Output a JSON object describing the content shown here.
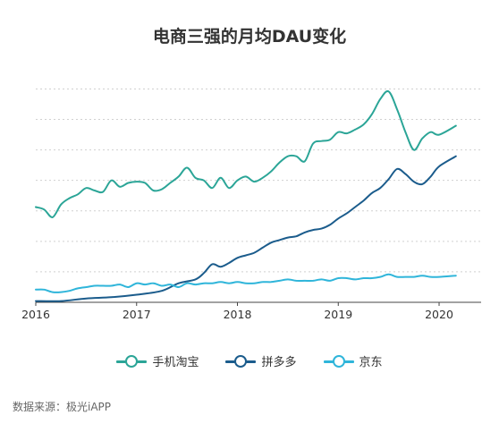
{
  "chart_data": {
    "type": "line",
    "title": "电商三强的月均DAU变化",
    "x_tick_labels": [
      "2016",
      "2017",
      "2018",
      "2019",
      "2020"
    ],
    "xlim": [
      "2016-01",
      "2020-06"
    ],
    "ylim": [
      0,
      100
    ],
    "y_gridlines": [
      12,
      24,
      36,
      48,
      60,
      72,
      84
    ],
    "y_axis_labels_shown": false,
    "legend_position": "bottom-center",
    "series": [
      {
        "name": "手机淘宝",
        "color": "#2BA597",
        "points": [
          [
            "2016-01",
            37.5
          ],
          [
            "2016-02",
            36.5
          ],
          [
            "2016-03",
            33.5
          ],
          [
            "2016-04",
            38.5
          ],
          [
            "2016-05",
            41
          ],
          [
            "2016-06",
            42.5
          ],
          [
            "2016-07",
            45
          ],
          [
            "2016-08",
            44
          ],
          [
            "2016-09",
            43.5
          ],
          [
            "2016-10",
            48
          ],
          [
            "2016-11",
            45.5
          ],
          [
            "2016-12",
            47
          ],
          [
            "2017-01",
            47.5
          ],
          [
            "2017-02",
            47
          ],
          [
            "2017-03",
            44
          ],
          [
            "2017-04",
            44.5
          ],
          [
            "2017-05",
            47
          ],
          [
            "2017-06",
            49.5
          ],
          [
            "2017-07",
            53
          ],
          [
            "2017-08",
            49
          ],
          [
            "2017-09",
            48
          ],
          [
            "2017-10",
            45
          ],
          [
            "2017-11",
            49
          ],
          [
            "2017-12",
            45
          ],
          [
            "2018-01",
            48
          ],
          [
            "2018-02",
            49.5
          ],
          [
            "2018-03",
            47.5
          ],
          [
            "2018-04",
            49
          ],
          [
            "2018-05",
            51.5
          ],
          [
            "2018-06",
            55
          ],
          [
            "2018-07",
            57.5
          ],
          [
            "2018-08",
            57.5
          ],
          [
            "2018-09",
            55.5
          ],
          [
            "2018-10",
            62.5
          ],
          [
            "2018-11",
            63.5
          ],
          [
            "2018-12",
            64
          ],
          [
            "2019-01",
            67
          ],
          [
            "2019-02",
            66.5
          ],
          [
            "2019-03",
            68
          ],
          [
            "2019-04",
            70
          ],
          [
            "2019-05",
            74
          ],
          [
            "2019-06",
            80
          ],
          [
            "2019-07",
            83
          ],
          [
            "2019-08",
            76
          ],
          [
            "2019-09",
            67
          ],
          [
            "2019-10",
            60
          ],
          [
            "2019-11",
            64.5
          ],
          [
            "2019-12",
            67
          ],
          [
            "2020-01",
            66
          ],
          [
            "2020-03",
            69.5
          ]
        ]
      },
      {
        "name": "拼多多",
        "color": "#1B5C8C",
        "points": [
          [
            "2016-01",
            0.5
          ],
          [
            "2016-04",
            0.5
          ],
          [
            "2016-07",
            1.5
          ],
          [
            "2016-10",
            2
          ],
          [
            "2017-01",
            3
          ],
          [
            "2017-04",
            4.5
          ],
          [
            "2017-06",
            7.5
          ],
          [
            "2017-08",
            9
          ],
          [
            "2017-09",
            11.5
          ],
          [
            "2017-10",
            15
          ],
          [
            "2017-11",
            14
          ],
          [
            "2017-12",
            15.5
          ],
          [
            "2018-01",
            17.5
          ],
          [
            "2018-02",
            18.5
          ],
          [
            "2018-03",
            19.5
          ],
          [
            "2018-04",
            21.5
          ],
          [
            "2018-05",
            23.5
          ],
          [
            "2018-06",
            24.5
          ],
          [
            "2018-07",
            25.5
          ],
          [
            "2018-08",
            26
          ],
          [
            "2018-09",
            27.5
          ],
          [
            "2018-10",
            28.5
          ],
          [
            "2018-11",
            29
          ],
          [
            "2018-12",
            30.5
          ],
          [
            "2019-01",
            33
          ],
          [
            "2019-02",
            35
          ],
          [
            "2019-03",
            37.5
          ],
          [
            "2019-04",
            40
          ],
          [
            "2019-05",
            43
          ],
          [
            "2019-06",
            45
          ],
          [
            "2019-07",
            48.5
          ],
          [
            "2019-08",
            52.5
          ],
          [
            "2019-09",
            50.5
          ],
          [
            "2019-10",
            47.5
          ],
          [
            "2019-11",
            46.5
          ],
          [
            "2019-12",
            49.5
          ],
          [
            "2020-01",
            53.5
          ],
          [
            "2020-03",
            57.5
          ]
        ]
      },
      {
        "name": "京东",
        "color": "#2FB5DA",
        "points": [
          [
            "2016-01",
            5
          ],
          [
            "2016-02",
            5
          ],
          [
            "2016-03",
            4
          ],
          [
            "2016-04",
            4
          ],
          [
            "2016-05",
            4.5
          ],
          [
            "2016-06",
            5.5
          ],
          [
            "2016-07",
            6
          ],
          [
            "2016-08",
            6.5
          ],
          [
            "2016-09",
            6.5
          ],
          [
            "2016-10",
            6.5
          ],
          [
            "2016-11",
            7
          ],
          [
            "2016-12",
            6
          ],
          [
            "2017-01",
            7.5
          ],
          [
            "2017-02",
            7
          ],
          [
            "2017-03",
            7.5
          ],
          [
            "2017-04",
            6.5
          ],
          [
            "2017-05",
            7
          ],
          [
            "2017-06",
            6
          ],
          [
            "2017-07",
            7.5
          ],
          [
            "2017-08",
            7
          ],
          [
            "2017-09",
            7.5
          ],
          [
            "2017-10",
            7.5
          ],
          [
            "2017-11",
            8
          ],
          [
            "2017-12",
            7.5
          ],
          [
            "2018-01",
            8
          ],
          [
            "2018-02",
            7.5
          ],
          [
            "2018-03",
            7.5
          ],
          [
            "2018-04",
            8
          ],
          [
            "2018-05",
            8
          ],
          [
            "2018-06",
            8.5
          ],
          [
            "2018-07",
            9
          ],
          [
            "2018-08",
            8.5
          ],
          [
            "2018-09",
            8.5
          ],
          [
            "2018-10",
            8.5
          ],
          [
            "2018-11",
            9
          ],
          [
            "2018-12",
            8.5
          ],
          [
            "2019-01",
            9.5
          ],
          [
            "2019-02",
            9.5
          ],
          [
            "2019-03",
            9
          ],
          [
            "2019-04",
            9.5
          ],
          [
            "2019-05",
            9.5
          ],
          [
            "2019-06",
            10
          ],
          [
            "2019-07",
            11
          ],
          [
            "2019-08",
            10
          ],
          [
            "2019-09",
            10
          ],
          [
            "2019-10",
            10
          ],
          [
            "2019-11",
            10.5
          ],
          [
            "2019-12",
            10
          ],
          [
            "2020-01",
            10
          ],
          [
            "2020-03",
            10.5
          ]
        ]
      }
    ]
  },
  "source_text": "数据来源：极光iAPP",
  "colors": {
    "grid": "#D0D0D0",
    "axis": "#444444",
    "text": "#333333"
  }
}
